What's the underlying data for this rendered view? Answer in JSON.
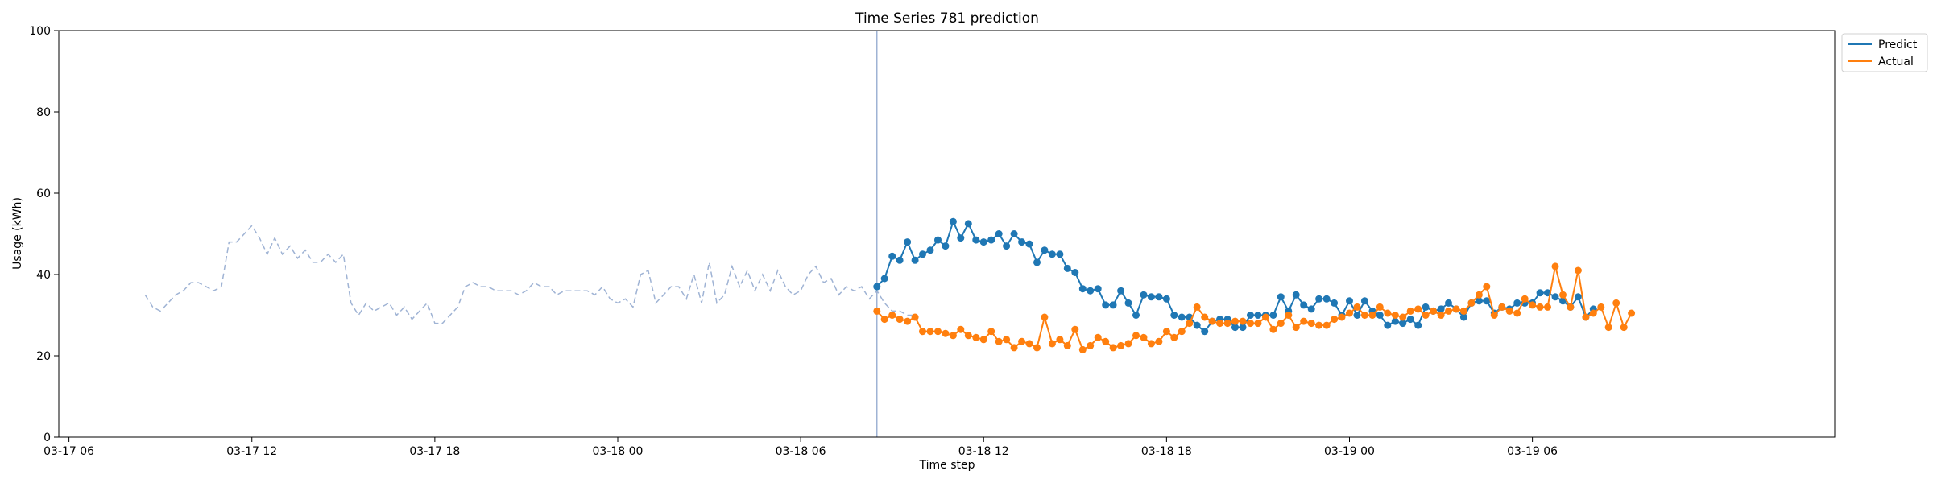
{
  "chart_data": {
    "type": "line",
    "title": "Time Series 781 prediction",
    "xlabel": "Time step",
    "ylabel": "Usage (kWh)",
    "ylim": [
      0,
      100
    ],
    "xlim": [
      "2015-03-17 05:40",
      "2015-03-19 15:55"
    ],
    "x_ticks": [
      "2015-03-17 06:00",
      "2015-03-17 12:00",
      "2015-03-17 18:00",
      "2015-03-18 00:00",
      "2015-03-18 06:00",
      "2015-03-18 12:00",
      "2015-03-18 18:00",
      "2015-03-19 00:00",
      "2015-03-19 06:00"
    ],
    "x_tick_labels": [
      "03-17 06",
      "03-17 12",
      "03-17 18",
      "03-18 00",
      "03-18 06",
      "03-18 12",
      "03-18 18",
      "03-19 00",
      "03-19 06"
    ],
    "y_ticks": [
      0,
      20,
      40,
      60,
      80,
      100
    ],
    "y_tick_labels": [
      "0",
      "20",
      "40",
      "60",
      "80",
      "100"
    ],
    "step_minutes": 15,
    "forecast_start": "2015-03-18 08:30",
    "legend_placement": "outside upper right",
    "grid": false,
    "history": {
      "start": "2015-03-17 08:30",
      "style": "dashed",
      "color": "#9fb3d4",
      "values": [
        35,
        32,
        31,
        33,
        35,
        36,
        38,
        38,
        37,
        36,
        37,
        48,
        48,
        50,
        52,
        49,
        45,
        49,
        45,
        47,
        44,
        46,
        43,
        43,
        45,
        43,
        45,
        33,
        30,
        33,
        31,
        32,
        33,
        30,
        32,
        29,
        31,
        33,
        28,
        28,
        30,
        32,
        37,
        38,
        37,
        37,
        36,
        36,
        36,
        35,
        36,
        38,
        37,
        37,
        35,
        36,
        36,
        36,
        36,
        35,
        37,
        34,
        33,
        34,
        32,
        40,
        41,
        33,
        35,
        37,
        37,
        34,
        40,
        33,
        43,
        33,
        35,
        42,
        37,
        41,
        36,
        40,
        36,
        41,
        37,
        35,
        36,
        40,
        42,
        38,
        39,
        35,
        37,
        36,
        37,
        34,
        36,
        33,
        31,
        31,
        30,
        30
      ]
    },
    "forecast_line_color": "#9fb3d4",
    "series": [
      {
        "name": "Predict",
        "color": "#1f77b4",
        "start": "2015-03-18 08:30",
        "values": [
          37,
          39,
          44.5,
          43.5,
          48,
          43.5,
          45,
          46,
          48.5,
          47,
          53,
          49,
          52.5,
          48.5,
          48,
          48.5,
          50,
          47,
          50,
          48,
          47.5,
          43,
          46,
          45,
          45,
          41.5,
          40.5,
          36.5,
          36,
          36.5,
          32.5,
          32.5,
          36,
          33,
          30,
          35,
          34.5,
          34.5,
          34,
          30,
          29.5,
          29.5,
          27.5,
          26,
          28.5,
          29,
          29,
          27,
          27,
          30,
          30,
          30,
          30,
          34.5,
          31,
          35,
          32.5,
          31.5,
          34,
          34,
          33,
          30,
          33.5,
          30,
          33.5,
          31,
          30,
          27.5,
          28.5,
          28,
          29,
          27.5,
          32,
          31,
          31.5,
          33,
          31.5,
          29.5,
          33,
          33.5,
          33.5,
          30.5,
          32,
          31.5,
          33,
          33,
          33,
          35.5,
          35.5,
          34.5,
          33.5,
          32,
          34.5,
          29.5,
          31.5
        ]
      },
      {
        "name": "Actual",
        "color": "#ff7f0e",
        "start": "2015-03-18 08:30",
        "values": [
          31,
          29,
          30,
          29,
          28.5,
          29.5,
          26,
          26,
          26,
          25.5,
          25,
          26.5,
          25,
          24.5,
          24,
          26,
          23.5,
          24,
          22,
          23.5,
          23,
          22,
          29.5,
          23,
          24,
          22.5,
          26.5,
          21.5,
          22.5,
          24.5,
          23.5,
          22,
          22.5,
          23,
          25,
          24.5,
          23,
          23.5,
          26,
          24.5,
          26,
          28,
          32,
          29.5,
          28.5,
          28,
          28,
          28.5,
          28.5,
          28,
          28,
          29.5,
          26.5,
          28,
          30,
          27,
          28.5,
          28,
          27.5,
          27.5,
          29,
          29.5,
          30.5,
          32,
          30,
          30,
          32,
          30.5,
          30,
          29.5,
          31,
          31.5,
          30,
          31,
          30,
          31,
          31.5,
          31,
          33,
          35,
          37,
          30,
          32,
          31,
          30.5,
          34,
          32.5,
          32,
          32,
          42,
          35,
          32,
          41,
          29.5,
          30.5,
          32,
          27,
          33,
          27,
          30.5
        ]
      }
    ]
  }
}
